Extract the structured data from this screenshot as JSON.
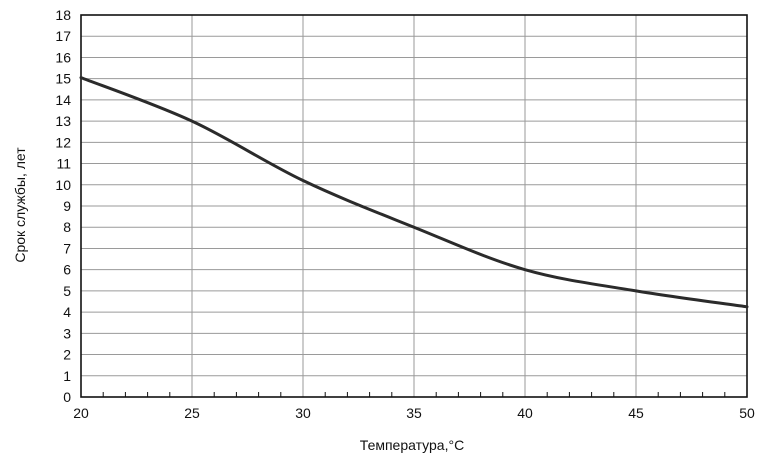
{
  "chart_data": {
    "type": "line",
    "xlabel": "Температура,°C",
    "ylabel": "Срок службы, лет",
    "xlim": [
      20,
      50
    ],
    "ylim": [
      0,
      18
    ],
    "x_ticks": [
      20,
      25,
      30,
      35,
      40,
      45,
      50
    ],
    "y_ticks": [
      0,
      1,
      2,
      3,
      4,
      5,
      6,
      7,
      8,
      9,
      10,
      11,
      12,
      13,
      14,
      15,
      16,
      17,
      18
    ],
    "grid": true,
    "legend": "none",
    "colors": {
      "line": "#2b2b2b",
      "grid": "#9a9a9a",
      "frame": "#111111",
      "background": "#ffffff"
    },
    "series": [
      {
        "x": [
          20,
          25,
          30,
          35,
          40,
          45,
          50
        ],
        "y": [
          15.05,
          13.0,
          10.2,
          8.0,
          6.0,
          5.0,
          4.25
        ]
      }
    ]
  }
}
